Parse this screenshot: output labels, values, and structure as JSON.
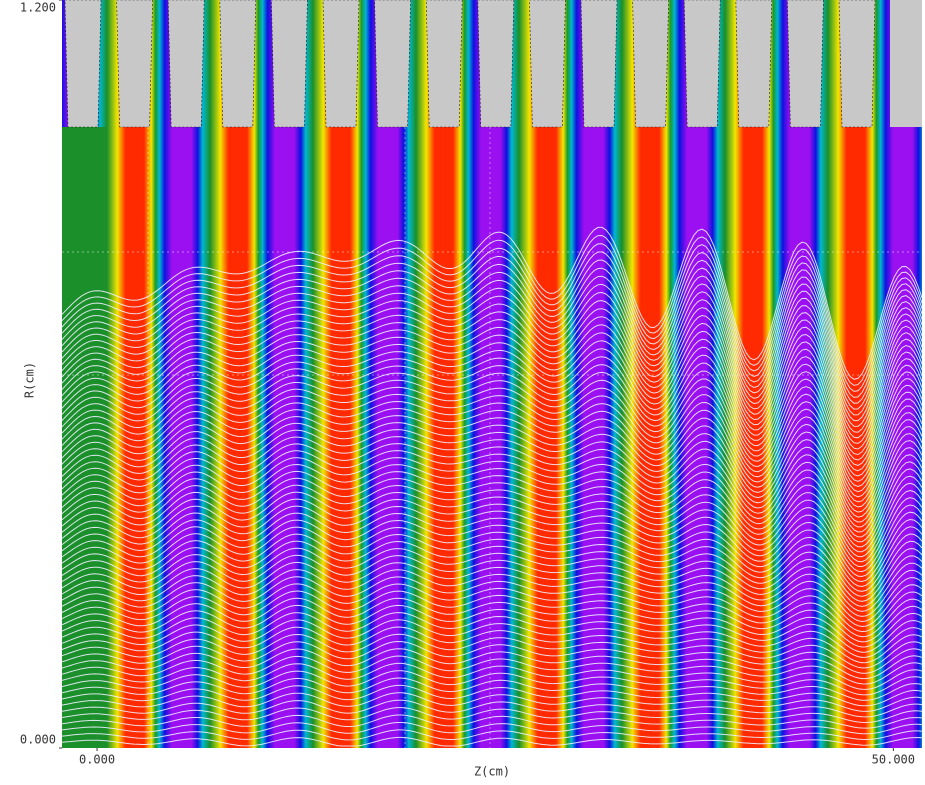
{
  "chart_data": {
    "type": "field-plot",
    "x_label": "Z(cm)",
    "y_label": "R(cm)",
    "xlim": [
      -2.2,
      51.8
    ],
    "ylim": [
      0,
      1.2
    ],
    "xticks": [
      {
        "value": 0,
        "label": "0.000"
      },
      {
        "value": 50,
        "label": "50.000"
      }
    ],
    "yticks": [
      {
        "value": 0,
        "label": "0.000"
      },
      {
        "value": 1.2,
        "label": "1.200"
      }
    ]
  }
}
